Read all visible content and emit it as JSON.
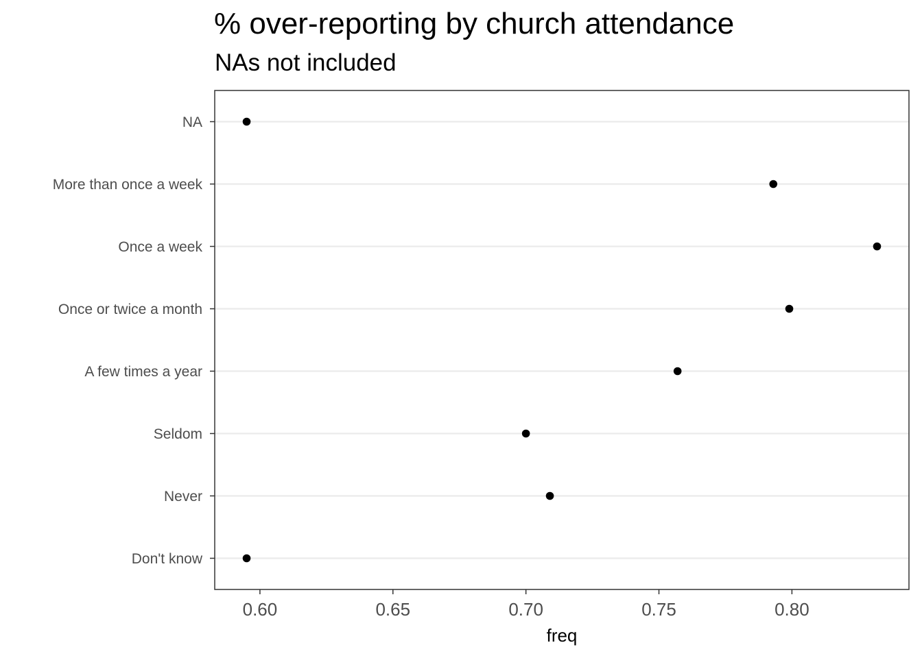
{
  "chart_data": {
    "type": "scatter",
    "title": "% over-reporting by church attendance",
    "subtitle": "NAs not included",
    "xlabel": "freq",
    "ylabel": "",
    "categories": [
      "NA",
      "More than once a week",
      "Once a week",
      "Once or twice a month",
      "A few times a year",
      "Seldom",
      "Never",
      "Don't know"
    ],
    "values": [
      0.595,
      0.793,
      0.832,
      0.799,
      0.757,
      0.7,
      0.709,
      0.595
    ],
    "xlim": [
      0.583,
      0.844
    ],
    "xticks": [
      0.6,
      0.65,
      0.7,
      0.75,
      0.8
    ],
    "xtick_labels": [
      "0.60",
      "0.65",
      "0.70",
      "0.75",
      "0.80"
    ],
    "grid": "horizontal major",
    "legend": "none",
    "point_color": "#000000",
    "grid_color": "#ebebeb"
  }
}
